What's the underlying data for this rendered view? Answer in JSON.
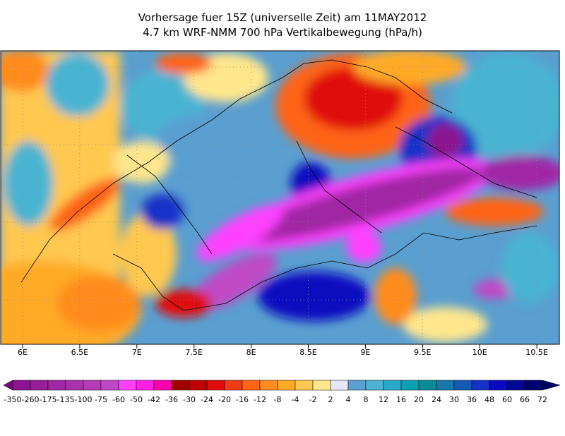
{
  "header": {
    "title": "Vorhersage fuer 15Z (universelle Zeit) am 11MAY2012",
    "subtitle": "4.7 km WRF-NMM 700 hPa Vertikalbewegung (hPa/h)"
  },
  "map": {
    "x_ticks": [
      "6E",
      "6.5E",
      "7E",
      "7.5E",
      "8E",
      "8.5E",
      "9E",
      "9.5E",
      "10E",
      "10.5E"
    ]
  },
  "colorbar": {
    "labels": [
      -350,
      -260,
      -175,
      -135,
      -100,
      -75,
      -60,
      -50,
      -42,
      -36,
      -30,
      -24,
      -20,
      -16,
      -12,
      -8,
      -4,
      -2,
      2,
      4,
      8,
      12,
      16,
      20,
      24,
      30,
      36,
      48,
      60,
      66,
      72
    ],
    "colors": [
      "#800080",
      "#8c1490",
      "#961e9a",
      "#a028a5",
      "#aa32ae",
      "#b43cb8",
      "#c048c6",
      "#ff40ff",
      "#ff20e8",
      "#ff00b0",
      "#a00000",
      "#c00000",
      "#e00a0a",
      "#f03c14",
      "#ff6414",
      "#ff8c1e",
      "#ffaa28",
      "#ffc850",
      "#ffe68c",
      "#e6e6f8",
      "#5a9fd0",
      "#4ab4d2",
      "#28aacc",
      "#0aa0b4",
      "#0a8c96",
      "#1478aa",
      "#145ab4",
      "#1432c8",
      "#0a0ac0",
      "#000896",
      "#00006e",
      "#000064"
    ]
  }
}
